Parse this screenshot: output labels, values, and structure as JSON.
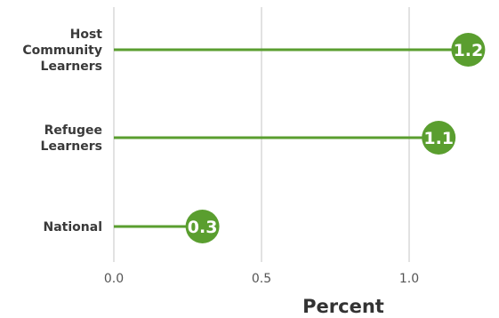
{
  "chart_data": {
    "type": "lollipop",
    "orientation": "horizontal",
    "categories": [
      "Host Community Learners",
      "Refugee Learners",
      "National"
    ],
    "category_lines": [
      [
        "Host",
        "Community",
        "Learners"
      ],
      [
        "Refugee",
        "Learners"
      ],
      [
        "National"
      ]
    ],
    "values": [
      1.2,
      1.1,
      0.3
    ],
    "value_labels": [
      "1.2",
      "1.1",
      "0.3"
    ],
    "xlabel": "Percent",
    "xlim": [
      0,
      1.25
    ],
    "xticks": [
      0.0,
      0.5,
      1.0
    ],
    "xtick_labels": [
      "0.0",
      "0.5",
      "1.0"
    ],
    "grid": true,
    "colors": {
      "marker": "#5a9e2f",
      "stem": "#5a9e2f",
      "grid": "#d9d9d9",
      "label_text": "#ffffff"
    }
  }
}
